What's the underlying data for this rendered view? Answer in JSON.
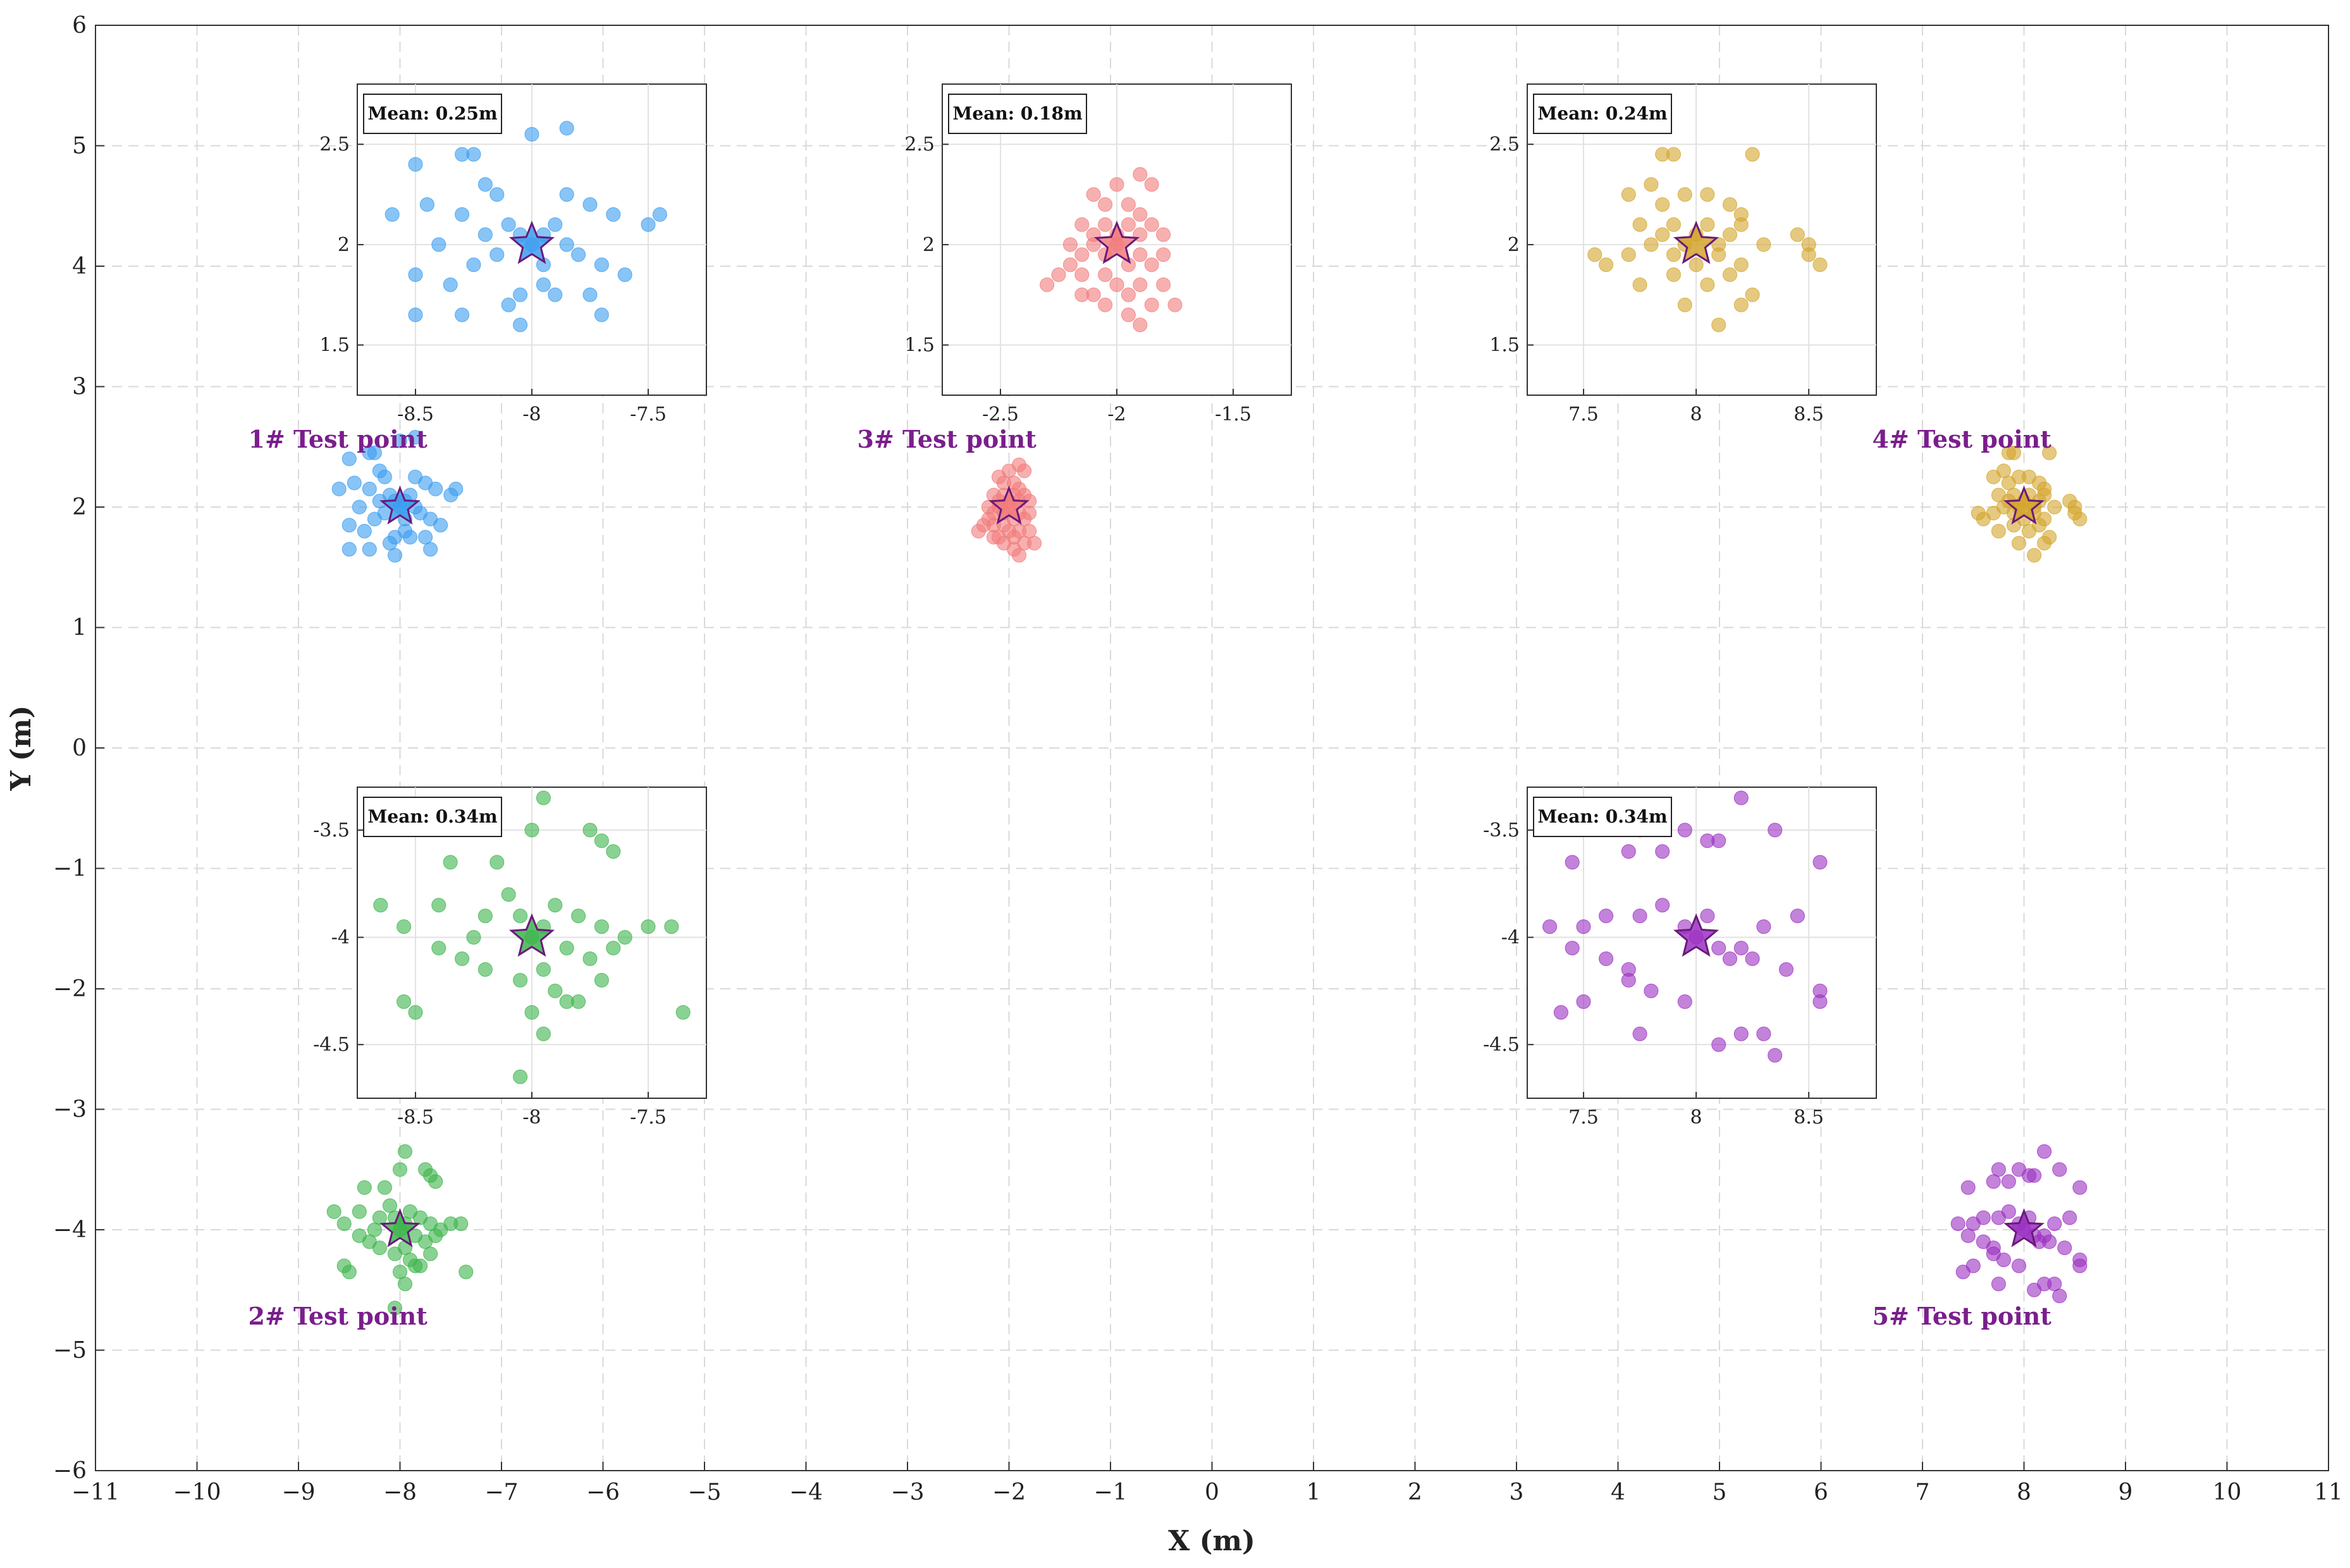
{
  "chart_data": {
    "type": "scatter",
    "xlabel": "X (m)",
    "ylabel": "Y (m)",
    "xlim": [
      -11,
      11
    ],
    "ylim": [
      -6,
      6
    ],
    "xticks": [
      "−11",
      "−10",
      "−9",
      "−8",
      "−7",
      "−6",
      "−5",
      "−4",
      "−3",
      "−2",
      "−1",
      "0",
      "1",
      "2",
      "3",
      "4",
      "5",
      "6",
      "7",
      "8",
      "9",
      "10",
      "11"
    ],
    "yticks": [
      "−6",
      "−5",
      "−4",
      "−3",
      "−2",
      "−1",
      "0",
      "1",
      "2",
      "3",
      "4",
      "5",
      "6"
    ],
    "grid": true,
    "test_points": [
      {
        "name": "1# Test point",
        "color": "#3b9cf0",
        "true_x": -8,
        "true_y": 2,
        "points": [
          [
            -8.5,
            2.4
          ],
          [
            -8.3,
            2.45
          ],
          [
            -8.25,
            2.45
          ],
          [
            -8.2,
            2.3
          ],
          [
            -8.0,
            2.55
          ],
          [
            -7.85,
            2.58
          ],
          [
            -8.45,
            2.2
          ],
          [
            -8.6,
            2.15
          ],
          [
            -8.4,
            2.0
          ],
          [
            -8.3,
            2.15
          ],
          [
            -8.2,
            2.05
          ],
          [
            -8.15,
            1.95
          ],
          [
            -8.1,
            2.1
          ],
          [
            -8.05,
            2.05
          ],
          [
            -8.0,
            2.0
          ],
          [
            -7.95,
            2.05
          ],
          [
            -7.9,
            2.1
          ],
          [
            -7.85,
            2.0
          ],
          [
            -7.8,
            1.95
          ],
          [
            -7.75,
            2.2
          ],
          [
            -7.7,
            1.9
          ],
          [
            -7.65,
            2.15
          ],
          [
            -7.6,
            1.85
          ],
          [
            -7.5,
            2.1
          ],
          [
            -7.45,
            2.15
          ],
          [
            -8.5,
            1.85
          ],
          [
            -8.35,
            1.8
          ],
          [
            -8.25,
            1.9
          ],
          [
            -8.1,
            1.7
          ],
          [
            -8.05,
            1.75
          ],
          [
            -7.95,
            1.8
          ],
          [
            -7.9,
            1.75
          ],
          [
            -7.75,
            1.75
          ],
          [
            -7.7,
            1.65
          ],
          [
            -8.5,
            1.65
          ],
          [
            -8.3,
            1.65
          ],
          [
            -8.05,
            1.6
          ],
          [
            -7.95,
            1.9
          ],
          [
            -8.15,
            2.25
          ],
          [
            -7.85,
            2.25
          ]
        ],
        "inset": {
          "mean_label": "Mean: 0.25m",
          "xlim": [
            -8.75,
            -7.25
          ],
          "ylim": [
            1.25,
            2.8
          ],
          "xticks": [
            -8.5,
            -8,
            -7.5
          ],
          "yticks": [
            1.5,
            2,
            2.5
          ],
          "xtick_labels": [
            "-8.5",
            "-8",
            "-7.5"
          ],
          "ytick_labels": [
            "1.5",
            "2",
            "2.5"
          ]
        }
      },
      {
        "name": "2# Test point",
        "color": "#3cb44b",
        "true_x": -8,
        "true_y": -4,
        "points": [
          [
            -7.95,
            -3.35
          ],
          [
            -8.0,
            -3.5
          ],
          [
            -7.75,
            -3.5
          ],
          [
            -7.7,
            -3.55
          ],
          [
            -8.35,
            -3.65
          ],
          [
            -8.15,
            -3.65
          ],
          [
            -7.65,
            -3.6
          ],
          [
            -8.65,
            -3.85
          ],
          [
            -8.55,
            -3.95
          ],
          [
            -8.4,
            -3.85
          ],
          [
            -8.2,
            -3.9
          ],
          [
            -8.1,
            -3.8
          ],
          [
            -8.05,
            -3.9
          ],
          [
            -8.0,
            -4.0
          ],
          [
            -7.95,
            -3.95
          ],
          [
            -7.9,
            -3.85
          ],
          [
            -7.85,
            -4.05
          ],
          [
            -7.8,
            -3.9
          ],
          [
            -7.75,
            -4.1
          ],
          [
            -7.7,
            -3.95
          ],
          [
            -7.6,
            -4.0
          ],
          [
            -7.5,
            -3.95
          ],
          [
            -7.4,
            -3.95
          ],
          [
            -8.4,
            -4.05
          ],
          [
            -8.3,
            -4.1
          ],
          [
            -8.2,
            -4.15
          ],
          [
            -8.05,
            -4.2
          ],
          [
            -7.95,
            -4.15
          ],
          [
            -7.9,
            -4.25
          ],
          [
            -7.85,
            -4.3
          ],
          [
            -7.8,
            -4.3
          ],
          [
            -7.7,
            -4.2
          ],
          [
            -8.55,
            -4.3
          ],
          [
            -8.5,
            -4.35
          ],
          [
            -8.0,
            -4.35
          ],
          [
            -7.95,
            -4.45
          ],
          [
            -7.35,
            -4.35
          ],
          [
            -8.05,
            -4.65
          ],
          [
            -8.25,
            -4.0
          ],
          [
            -7.65,
            -4.05
          ]
        ],
        "inset": {
          "mean_label": "Mean: 0.34m",
          "xlim": [
            -8.75,
            -7.25
          ],
          "ylim": [
            -4.75,
            -3.3
          ],
          "xticks": [
            -8.5,
            -8,
            -7.5
          ],
          "yticks": [
            -4.5,
            -4,
            -3.5
          ],
          "xtick_labels": [
            "-8.5",
            "-8",
            "-7.5"
          ],
          "ytick_labels": [
            "-4.5",
            "-4",
            "-3.5"
          ]
        }
      },
      {
        "name": "3# Test point",
        "color": "#f27b7b",
        "true_x": -2,
        "true_y": 2,
        "points": [
          [
            -2.0,
            2.3
          ],
          [
            -1.9,
            2.35
          ],
          [
            -1.85,
            2.3
          ],
          [
            -2.1,
            2.25
          ],
          [
            -2.05,
            2.2
          ],
          [
            -1.95,
            2.2
          ],
          [
            -1.9,
            2.15
          ],
          [
            -2.15,
            2.1
          ],
          [
            -2.1,
            2.05
          ],
          [
            -2.05,
            2.1
          ],
          [
            -2.0,
            2.05
          ],
          [
            -1.95,
            2.1
          ],
          [
            -1.9,
            2.05
          ],
          [
            -1.85,
            2.1
          ],
          [
            -1.8,
            2.05
          ],
          [
            -2.2,
            2.0
          ],
          [
            -2.15,
            1.95
          ],
          [
            -2.1,
            2.0
          ],
          [
            -2.05,
            1.95
          ],
          [
            -2.0,
            2.0
          ],
          [
            -1.95,
            1.9
          ],
          [
            -1.9,
            1.95
          ],
          [
            -1.85,
            1.9
          ],
          [
            -1.8,
            1.95
          ],
          [
            -2.25,
            1.85
          ],
          [
            -2.2,
            1.9
          ],
          [
            -2.15,
            1.85
          ],
          [
            -2.05,
            1.85
          ],
          [
            -2.0,
            1.8
          ],
          [
            -1.95,
            1.75
          ],
          [
            -1.9,
            1.8
          ],
          [
            -1.85,
            1.7
          ],
          [
            -2.3,
            1.8
          ],
          [
            -2.1,
            1.75
          ],
          [
            -2.05,
            1.7
          ],
          [
            -1.95,
            1.65
          ],
          [
            -1.75,
            1.7
          ],
          [
            -1.9,
            1.6
          ],
          [
            -2.15,
            1.75
          ],
          [
            -1.8,
            1.8
          ]
        ],
        "inset": {
          "mean_label": "Mean: 0.18m",
          "xlim": [
            -2.75,
            -1.25
          ],
          "ylim": [
            1.25,
            2.8
          ],
          "xticks": [
            -2.5,
            -2,
            -1.5
          ],
          "yticks": [
            1.5,
            2,
            2.5
          ],
          "xtick_labels": [
            "-2.5",
            "-2",
            "-1.5"
          ],
          "ytick_labels": [
            "1.5",
            "2",
            "2.5"
          ]
        }
      },
      {
        "name": "4# Test point",
        "color": "#d4a52c",
        "true_x": 8,
        "true_y": 2,
        "points": [
          [
            7.85,
            2.45
          ],
          [
            7.9,
            2.45
          ],
          [
            8.25,
            2.45
          ],
          [
            7.7,
            2.25
          ],
          [
            7.85,
            2.2
          ],
          [
            7.95,
            2.25
          ],
          [
            8.05,
            2.25
          ],
          [
            8.15,
            2.2
          ],
          [
            8.2,
            2.15
          ],
          [
            7.75,
            2.1
          ],
          [
            7.85,
            2.05
          ],
          [
            7.9,
            2.1
          ],
          [
            7.95,
            2.0
          ],
          [
            8.0,
            2.05
          ],
          [
            8.05,
            2.1
          ],
          [
            8.1,
            2.0
          ],
          [
            8.15,
            2.05
          ],
          [
            8.2,
            2.1
          ],
          [
            8.45,
            2.05
          ],
          [
            8.5,
            2.0
          ],
          [
            7.55,
            1.95
          ],
          [
            7.6,
            1.9
          ],
          [
            7.7,
            1.95
          ],
          [
            7.8,
            2.0
          ],
          [
            7.9,
            1.95
          ],
          [
            8.0,
            1.9
          ],
          [
            8.1,
            1.95
          ],
          [
            8.2,
            1.9
          ],
          [
            8.5,
            1.95
          ],
          [
            8.55,
            1.9
          ],
          [
            7.75,
            1.8
          ],
          [
            7.9,
            1.85
          ],
          [
            8.05,
            1.8
          ],
          [
            8.15,
            1.85
          ],
          [
            8.25,
            1.75
          ],
          [
            7.95,
            1.7
          ],
          [
            8.1,
            1.6
          ],
          [
            8.2,
            1.7
          ],
          [
            8.3,
            2.0
          ],
          [
            7.8,
            2.3
          ]
        ],
        "inset": {
          "mean_label": "Mean: 0.24m",
          "xlim": [
            7.25,
            8.8
          ],
          "ylim": [
            1.25,
            2.8
          ],
          "xticks": [
            7.5,
            8,
            8.5
          ],
          "yticks": [
            1.5,
            2,
            2.5
          ],
          "xtick_labels": [
            "7.5",
            "8",
            "8.5"
          ],
          "ytick_labels": [
            "1.5",
            "2",
            "2.5"
          ]
        }
      },
      {
        "name": "5# Test point",
        "color": "#9b30c2",
        "true_x": 8,
        "true_y": -4,
        "points": [
          [
            8.2,
            -3.35
          ],
          [
            7.95,
            -3.5
          ],
          [
            8.05,
            -3.55
          ],
          [
            8.35,
            -3.5
          ],
          [
            7.75,
            -3.5
          ],
          [
            7.7,
            -3.6
          ],
          [
            8.55,
            -3.65
          ],
          [
            7.45,
            -3.65
          ],
          [
            8.1,
            -3.55
          ],
          [
            7.85,
            -3.6
          ],
          [
            7.35,
            -3.95
          ],
          [
            7.5,
            -3.95
          ],
          [
            7.6,
            -3.9
          ],
          [
            7.75,
            -3.9
          ],
          [
            7.85,
            -3.85
          ],
          [
            7.95,
            -3.95
          ],
          [
            8.0,
            -4.0
          ],
          [
            8.05,
            -3.9
          ],
          [
            8.1,
            -4.05
          ],
          [
            8.15,
            -4.1
          ],
          [
            8.2,
            -4.05
          ],
          [
            8.3,
            -3.95
          ],
          [
            8.45,
            -3.9
          ],
          [
            7.45,
            -4.05
          ],
          [
            7.6,
            -4.1
          ],
          [
            7.7,
            -4.15
          ],
          [
            8.25,
            -4.1
          ],
          [
            8.4,
            -4.15
          ],
          [
            8.55,
            -4.25
          ],
          [
            7.4,
            -4.35
          ],
          [
            7.5,
            -4.3
          ],
          [
            7.7,
            -4.2
          ],
          [
            7.8,
            -4.25
          ],
          [
            7.95,
            -4.3
          ],
          [
            8.2,
            -4.45
          ],
          [
            8.3,
            -4.45
          ],
          [
            8.35,
            -4.55
          ],
          [
            8.55,
            -4.3
          ],
          [
            7.75,
            -4.45
          ],
          [
            8.1,
            -4.5
          ]
        ],
        "inset": {
          "mean_label": "Mean: 0.34m",
          "xlim": [
            7.25,
            8.8
          ],
          "ylim": [
            -4.75,
            -3.3
          ],
          "xticks": [
            7.5,
            8,
            8.5
          ],
          "yticks": [
            -4.5,
            -4,
            -3.5
          ],
          "xtick_labels": [
            "7.5",
            "8",
            "8.5"
          ],
          "ytick_labels": [
            "-4.5",
            "-4",
            "-3.5"
          ]
        }
      }
    ]
  }
}
